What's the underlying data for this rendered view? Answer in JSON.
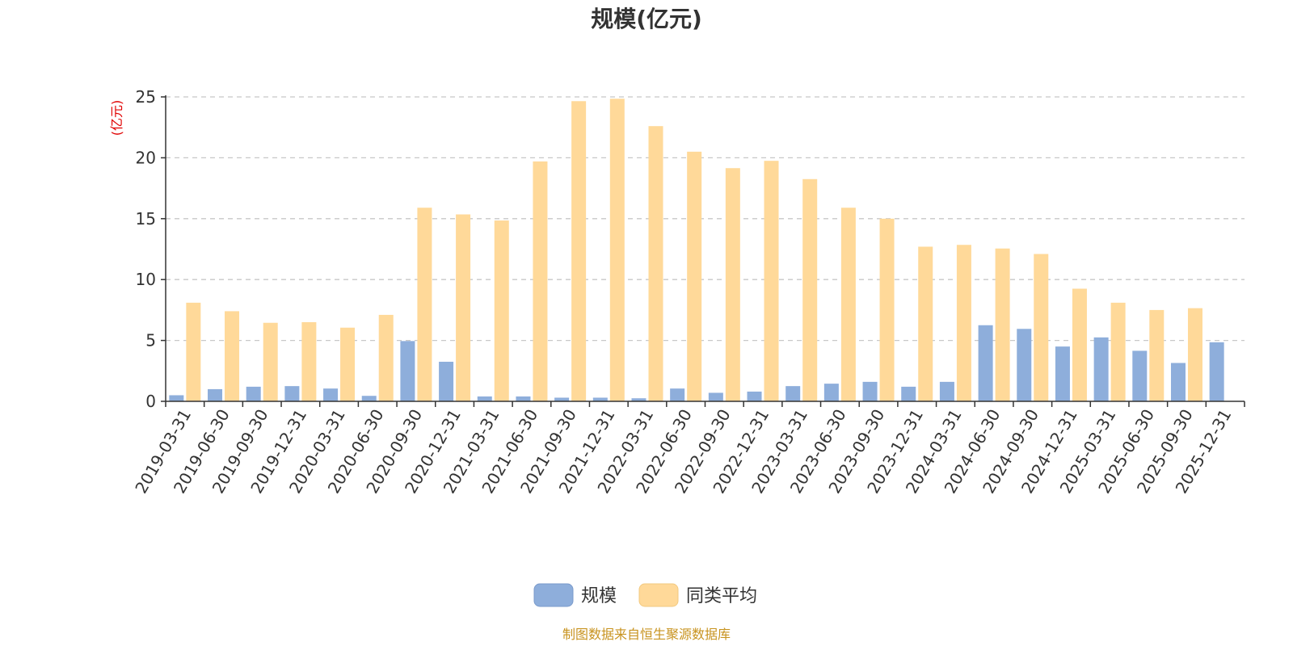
{
  "chart_data": {
    "type": "bar",
    "title": "规模(亿元)",
    "ylabel": "(亿元)",
    "ylim": [
      0,
      25
    ],
    "yticks": [
      0,
      5,
      10,
      15,
      20,
      25
    ],
    "grid": true,
    "legend_position": "bottom-center",
    "categories": [
      "2019-03-31",
      "2019-06-30",
      "2019-09-30",
      "2019-12-31",
      "2020-03-31",
      "2020-06-30",
      "2020-09-30",
      "2020-12-31",
      "2021-03-31",
      "2021-06-30",
      "2021-09-30",
      "2021-12-31",
      "2022-03-31",
      "2022-06-30",
      "2022-09-30",
      "2022-12-31",
      "2023-03-31",
      "2023-06-30",
      "2023-09-30",
      "2023-12-31",
      "2024-03-31",
      "2024-06-30",
      "2024-09-30",
      "2024-12-31",
      "2025-03-31",
      "2025-06-30",
      "2025-09-30",
      "2025-12-31"
    ],
    "series": [
      {
        "name": "规模",
        "color": "#8eaedb",
        "values": [
          0.5,
          1.0,
          1.2,
          1.25,
          1.05,
          0.45,
          4.95,
          3.25,
          0.4,
          0.4,
          0.3,
          0.3,
          0.25,
          1.05,
          0.7,
          0.8,
          1.25,
          1.45,
          1.6,
          1.2,
          1.6,
          6.25,
          5.95,
          4.5,
          5.25,
          4.15,
          3.15,
          4.85
        ]
      },
      {
        "name": "同类平均",
        "color": "#ffd999",
        "values": [
          8.1,
          7.4,
          6.45,
          6.5,
          6.05,
          7.1,
          15.9,
          15.35,
          14.85,
          19.7,
          24.65,
          24.85,
          22.6,
          20.5,
          19.15,
          19.75,
          18.25,
          15.9,
          15.0,
          12.7,
          12.85,
          12.55,
          12.1,
          9.25,
          8.1,
          7.5,
          7.65,
          null
        ]
      }
    ]
  },
  "footer": {
    "source": "制图数据来自恒生聚源数据库"
  }
}
